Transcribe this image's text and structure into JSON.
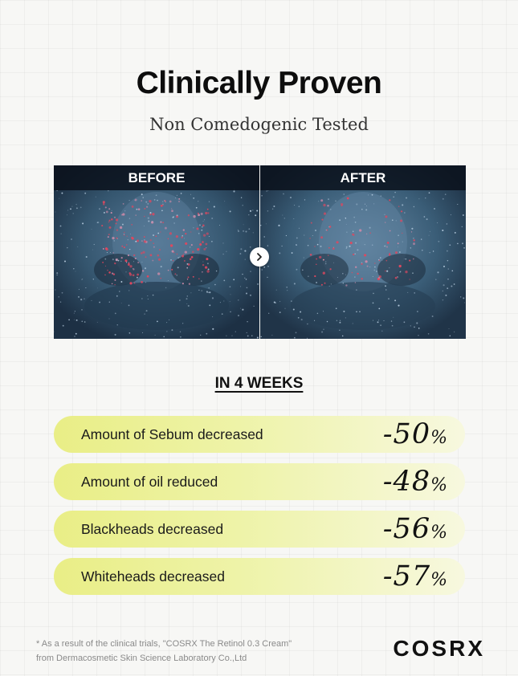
{
  "header": {
    "title": "Clinically Proven",
    "subtitle": "Non Comedogenic Tested"
  },
  "comparison": {
    "before_label": "BEFORE",
    "after_label": "AFTER",
    "arrow_icon": "chevron-right-icon"
  },
  "results": {
    "heading": "IN 4 WEEKS",
    "items": [
      {
        "label": "Amount of Sebum decreased",
        "value": "-50",
        "unit": "%"
      },
      {
        "label": "Amount of oil reduced",
        "value": "-48",
        "unit": "%"
      },
      {
        "label": "Blackheads decreased",
        "value": "-56",
        "unit": "%"
      },
      {
        "label": "Whiteheads decreased",
        "value": "-57",
        "unit": "%"
      }
    ]
  },
  "footer": {
    "footnote_line1": "* As a result of the clinical trials, \"COSRX The Retinol 0.3 Cream\"",
    "footnote_line2": "from Dermacosmetic Skin Science Laboratory Co.,Ltd",
    "logo": "COSRX"
  },
  "colors": {
    "bar_start": "#e9ee86",
    "bar_end": "#f7f8df",
    "photo_base": "#2b4660"
  }
}
